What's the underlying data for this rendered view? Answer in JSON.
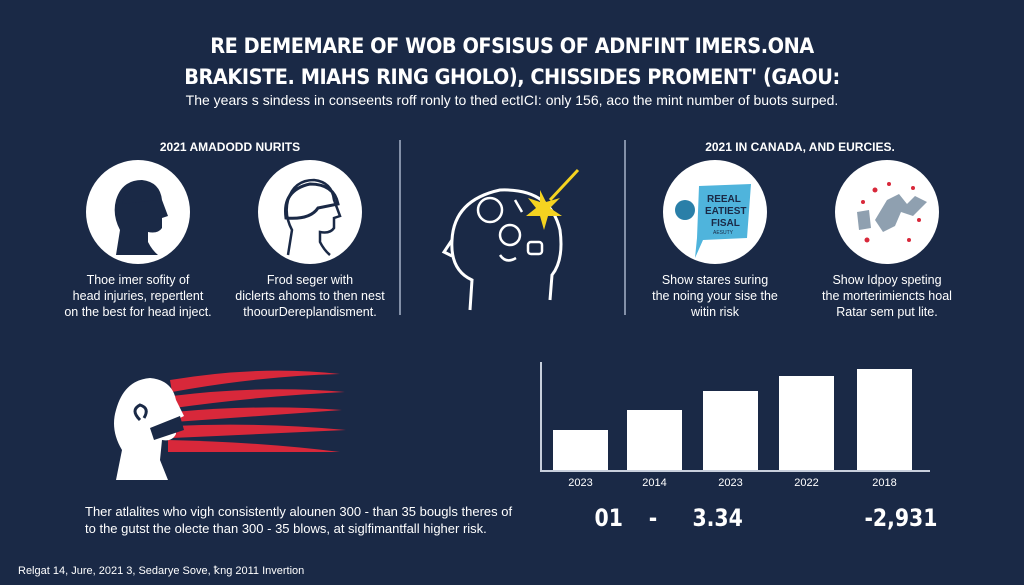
{
  "title": {
    "line1": "RE DEMEMARE OF WOB OFSISUS OF ADNFINT IMERS.ONA",
    "line2": "BRAKISTE. MIAHS RING GHOLO), CHISSIDES PROMENT' (GAOU:",
    "subtitle": "The years s sindess in conseents roff ronly to thed ectICI: only 156, aco the mint number of buots surped."
  },
  "left_section": {
    "header": "2021 AMADODD NURITS",
    "items": [
      {
        "icon": "head-profile-icon",
        "caption": [
          "Thoe imer sofity of",
          "head injuries, repertlent",
          "on the best for head inject."
        ]
      },
      {
        "icon": "helmet-head-icon",
        "caption": [
          "Frod seger with",
          "diclerts ahoms to then nest",
          "thoourDereplandisment."
        ]
      }
    ]
  },
  "center": {
    "icon": "brain-impact-icon"
  },
  "right_section": {
    "header": "2021 IN CANADA, AND EURCIES.",
    "items": [
      {
        "icon": "news-globe-icon",
        "badge_text": [
          "REEAL",
          "EATIEST",
          "FISAL",
          "AESUTY"
        ],
        "caption": [
          "Show stares suring",
          "the noing your sise the",
          "witin risk"
        ]
      },
      {
        "icon": "falling-person-icon",
        "caption": [
          "Show Idpoy speting",
          "the morterimiencts hoal",
          "Ratar sem put lite."
        ]
      }
    ]
  },
  "bottom_left": {
    "icon": "head-impact-icon",
    "text": [
      "Ther atlalites who vigh consistently alounen 300 - than 35 bougls theres of",
      "to the gutst the olecte than 300 - 35 blows, at siglfimantfall higher risk."
    ]
  },
  "chart_data": {
    "type": "bar",
    "categories": [
      "2023",
      "2014",
      "2023",
      "2022",
      "2018"
    ],
    "values": [
      38,
      57,
      75,
      90,
      96
    ],
    "ylim": [
      0,
      100
    ],
    "title": "",
    "xlabel": "",
    "ylabel": "",
    "grid": false,
    "stats": [
      "01",
      "-",
      "3.34",
      "-2,931"
    ]
  },
  "footer": "Relgat 14, Jure, 2021 3, Sedarye Sove, ꝁng 2011 Invertion",
  "colors": {
    "background": "#1a2946",
    "accent_red": "#d8283a",
    "spark": "#f5d320"
  }
}
